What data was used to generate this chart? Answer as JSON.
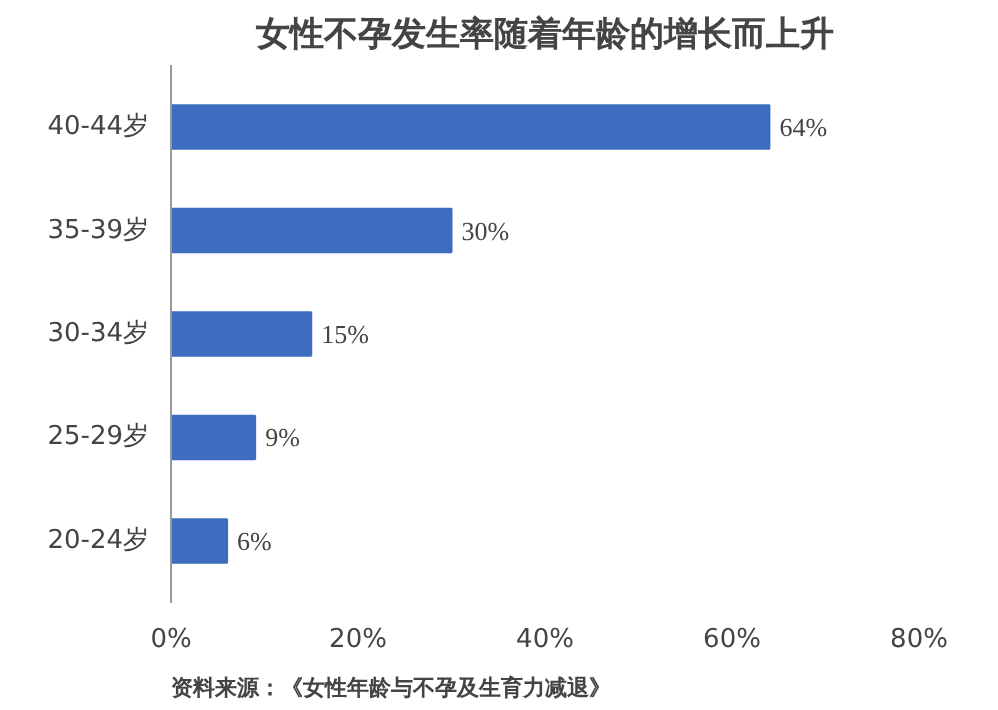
{
  "chart_data": {
    "type": "bar",
    "orientation": "horizontal",
    "title": "女性不孕发生率随着年龄的增长而上升",
    "categories": [
      "40-44岁",
      "35-39岁",
      "30-34岁",
      "25-29岁",
      "20-24岁"
    ],
    "values": [
      64,
      30,
      15,
      9,
      6
    ],
    "value_labels": [
      "64%",
      "30%",
      "15%",
      "9%",
      "6%"
    ],
    "color": "#3d6cc0",
    "xlim": [
      0,
      80
    ],
    "xticks": [
      {
        "value": 0,
        "label": "0%"
      },
      {
        "value": 20,
        "label": "20%"
      },
      {
        "value": 40,
        "label": "40%"
      },
      {
        "value": 60,
        "label": "60%"
      },
      {
        "value": 80,
        "label": "80%"
      }
    ],
    "grid": false,
    "annotations": [
      "资料来源：《女性年龄与不孕及生育力减退》"
    ]
  }
}
